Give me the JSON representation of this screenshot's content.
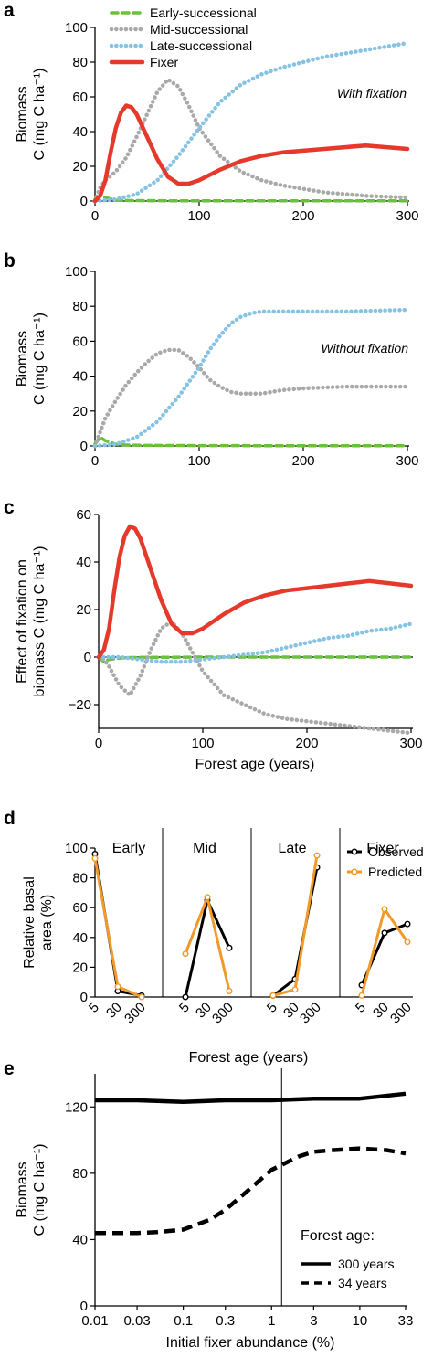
{
  "chart_data": [
    {
      "panel": "a",
      "type": "line",
      "note": "With fixation",
      "xlabel": "",
      "ylabel": [
        "Biomass",
        "C (mg C ha⁻¹)"
      ],
      "xlim": [
        0,
        300
      ],
      "ylim": [
        0,
        100
      ],
      "xticks": [
        0,
        100,
        200,
        300
      ],
      "yticks": [
        0,
        20,
        40,
        60,
        80,
        100
      ],
      "legend_position": "top-left",
      "series": [
        {
          "name": "Early-successional",
          "color": "#6ac13c",
          "style": "dashed",
          "x": [
            0,
            5,
            10,
            20,
            30,
            50,
            100,
            200,
            300
          ],
          "y": [
            1,
            3,
            2,
            0.5,
            0.3,
            0.2,
            0.1,
            0.1,
            0.1
          ]
        },
        {
          "name": "Mid-successional",
          "color": "#a9a9a9",
          "style": "dotted",
          "x": [
            0,
            5,
            10,
            20,
            30,
            40,
            50,
            60,
            70,
            80,
            90,
            100,
            120,
            140,
            160,
            180,
            200,
            220,
            240,
            260,
            280,
            300
          ],
          "y": [
            0,
            8,
            12,
            17,
            25,
            37,
            50,
            63,
            70,
            66,
            55,
            42,
            26,
            17,
            12,
            9,
            7,
            5,
            4,
            3,
            2.5,
            2
          ]
        },
        {
          "name": "Late-successional",
          "color": "#86c3e2",
          "style": "dotted",
          "x": [
            0,
            10,
            20,
            40,
            60,
            80,
            100,
            120,
            140,
            160,
            180,
            200,
            220,
            240,
            260,
            280,
            300
          ],
          "y": [
            0,
            0.5,
            1,
            4,
            12,
            26,
            42,
            57,
            67,
            73,
            77,
            80,
            83,
            85,
            87,
            89,
            91
          ]
        },
        {
          "name": "Fixer",
          "color": "#e4392b",
          "style": "solid",
          "x": [
            0,
            5,
            10,
            15,
            20,
            25,
            30,
            35,
            40,
            50,
            60,
            70,
            80,
            90,
            100,
            120,
            140,
            160,
            180,
            200,
            220,
            240,
            260,
            280,
            300
          ],
          "y": [
            0,
            3,
            12,
            28,
            42,
            51,
            55,
            54,
            50,
            37,
            24,
            14,
            10,
            10,
            12,
            18,
            23,
            26,
            28,
            29,
            30,
            31,
            32,
            31,
            30
          ]
        }
      ]
    },
    {
      "panel": "b",
      "type": "line",
      "note": "Without fixation",
      "xlabel": "",
      "ylabel": [
        "Biomass",
        "C (mg C ha⁻¹)"
      ],
      "xlim": [
        0,
        300
      ],
      "ylim": [
        0,
        100
      ],
      "xticks": [
        0,
        100,
        200,
        300
      ],
      "yticks": [
        0,
        20,
        40,
        60,
        80,
        100
      ],
      "series": [
        {
          "name": "Early-successional",
          "color": "#6ac13c",
          "style": "dashed",
          "x": [
            0,
            5,
            10,
            20,
            30,
            50,
            100,
            200,
            300
          ],
          "y": [
            1,
            5,
            3,
            1,
            0.5,
            0.3,
            0.2,
            0.1,
            0.1
          ]
        },
        {
          "name": "Mid-successional",
          "color": "#a9a9a9",
          "style": "dotted",
          "x": [
            0,
            5,
            10,
            20,
            30,
            40,
            50,
            60,
            70,
            80,
            90,
            100,
            110,
            120,
            130,
            140,
            160,
            180,
            200,
            240,
            300
          ],
          "y": [
            0,
            8,
            16,
            26,
            35,
            42,
            48,
            53,
            55,
            55,
            51,
            45,
            38,
            34,
            31,
            30,
            30,
            32,
            33,
            34,
            34
          ]
        },
        {
          "name": "Late-successional",
          "color": "#86c3e2",
          "style": "dotted",
          "x": [
            0,
            10,
            20,
            40,
            60,
            80,
            100,
            110,
            120,
            130,
            140,
            150,
            160,
            200,
            240,
            300
          ],
          "y": [
            0,
            0.5,
            1,
            5,
            14,
            28,
            45,
            55,
            63,
            70,
            74,
            76,
            77,
            77,
            77,
            78
          ]
        }
      ]
    },
    {
      "panel": "c",
      "type": "line",
      "xlabel": "Forest age (years)",
      "ylabel": [
        "Effect of fixation on",
        "biomass C (mg C ha⁻¹)"
      ],
      "xlim": [
        0,
        300
      ],
      "ylim": [
        -30,
        60
      ],
      "xticks": [
        0,
        100,
        200,
        300
      ],
      "yticks": [
        -20,
        0,
        20,
        40,
        60
      ],
      "series": [
        {
          "name": "Early-successional",
          "color": "#6ac13c",
          "style": "dashed",
          "x": [
            0,
            5,
            10,
            20,
            30,
            100,
            300
          ],
          "y": [
            0,
            -2,
            -1,
            -0.5,
            -0.2,
            0,
            0
          ]
        },
        {
          "name": "Mid-successional",
          "color": "#a9a9a9",
          "style": "dotted",
          "x": [
            0,
            5,
            10,
            20,
            30,
            40,
            50,
            60,
            70,
            80,
            90,
            100,
            120,
            140,
            160,
            180,
            200,
            220,
            240,
            260,
            280,
            300
          ],
          "y": [
            0,
            -1,
            -4,
            -12,
            -16,
            -8,
            3,
            12,
            15,
            10,
            2,
            -6,
            -16,
            -20,
            -24,
            -26,
            -27,
            -28,
            -29,
            -30,
            -31,
            -32
          ]
        },
        {
          "name": "Late-successional",
          "color": "#86c3e2",
          "style": "dotted",
          "x": [
            0,
            20,
            40,
            60,
            80,
            100,
            120,
            140,
            160,
            180,
            200,
            220,
            240,
            260,
            280,
            300
          ],
          "y": [
            0,
            0,
            -1,
            -2,
            -2,
            -1,
            0,
            1,
            2,
            4,
            6,
            8,
            9,
            11,
            12,
            14
          ]
        },
        {
          "name": "Fixer",
          "color": "#e4392b",
          "style": "solid",
          "x": [
            0,
            5,
            10,
            15,
            20,
            25,
            30,
            35,
            40,
            50,
            60,
            70,
            80,
            90,
            100,
            120,
            140,
            160,
            180,
            200,
            220,
            240,
            260,
            280,
            300
          ],
          "y": [
            0,
            3,
            12,
            28,
            42,
            51,
            55,
            54,
            50,
            37,
            24,
            14,
            10,
            10,
            12,
            18,
            23,
            26,
            28,
            29,
            30,
            31,
            32,
            31,
            30
          ]
        }
      ]
    },
    {
      "panel": "d",
      "type": "line",
      "xlabel": "Forest age (years)",
      "ylabel": [
        "Relative basal",
        "area (%)"
      ],
      "ylim": [
        0,
        100
      ],
      "yticks": [
        0,
        20,
        40,
        60,
        80,
        100
      ],
      "categories": [
        "5",
        "30",
        "300"
      ],
      "groups": [
        "Early",
        "Mid",
        "Late",
        "Fixer"
      ],
      "legend_position": "top-right",
      "series": [
        {
          "name": "Observed",
          "color": "#000000",
          "values": [
            [
              96,
              4,
              1
            ],
            [
              0,
              65,
              33
            ],
            [
              1,
              12,
              87
            ],
            [
              8,
              43,
              49
            ]
          ]
        },
        {
          "name": "Predicted",
          "color": "#f09a2a",
          "values": [
            [
              93,
              7,
              0
            ],
            [
              29,
              67,
              4
            ],
            [
              1,
              5,
              95
            ],
            [
              1,
              59,
              37
            ]
          ]
        }
      ]
    },
    {
      "panel": "e",
      "type": "line",
      "xlabel": "Initial fixer abundance (%)",
      "ylabel": [
        "Biomass",
        "C (mg C ha⁻¹)"
      ],
      "xscale": "log",
      "xticks": [
        "0.01",
        "0.03",
        "0.1",
        "0.3",
        "1",
        "3",
        "10",
        "33"
      ],
      "ylim": [
        0,
        140
      ],
      "yticks": [
        0,
        40,
        80,
        120
      ],
      "vline_x": 1.3,
      "legend_title": "Forest age:",
      "series": [
        {
          "name": "300 years",
          "color": "#000000",
          "style": "solid",
          "x": [
            0.01,
            0.03,
            0.1,
            0.3,
            1,
            3,
            10,
            33
          ],
          "y": [
            124,
            124,
            123,
            124,
            124,
            125,
            125,
            128
          ]
        },
        {
          "name": "34 years",
          "color": "#000000",
          "style": "dashed",
          "x": [
            0.01,
            0.03,
            0.05,
            0.1,
            0.2,
            0.3,
            0.5,
            1,
            2,
            3,
            5,
            10,
            20,
            33
          ],
          "y": [
            44,
            44,
            44.5,
            46,
            52,
            58,
            68,
            82,
            90,
            93,
            94,
            95,
            94,
            92
          ]
        }
      ]
    }
  ]
}
